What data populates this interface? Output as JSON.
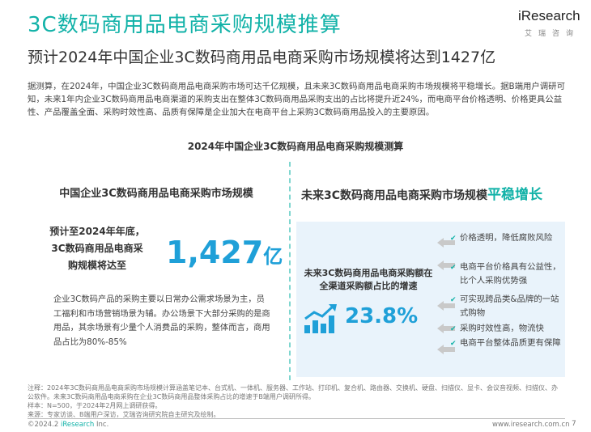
{
  "header": {
    "title": "3C数码商用品电商采购规模推算",
    "subtitle": "预计2024年中国企业3C数码商用品电商采购市场规模将达到1427亿",
    "logo_word": "iResearch",
    "logo_cn": "艾瑞咨询"
  },
  "intro": "据测算，在2024年，中国企业3C数码商用品电商采购市场可达千亿规模，且未来3C数码商用品电商采购市场规模将平稳增长。据B端用户调研可知，未来1年内企业3C数码商用品电商渠道的采购支出在整体3C数码商用品采购支出的占比将提升近24%，而电商平台价格透明、价格更具公益性、产品覆盖全面、采购时效性高、品质有保障是企业加大在电商平台上采购3C数码商用品投入的主要原因。",
  "chart_title": "2024年中国企业3C数码商用品电商采购规模测算",
  "left": {
    "heading": "中国企业3C数码商用品电商采购市场规模",
    "lines": [
      "预计至2024年年底，",
      "3C数码商用品电商采",
      "购规模将达至"
    ],
    "value": "1,427",
    "unit": "亿",
    "note": "企业3C数码产品的采购主要以日常办公需求场景为主，员工福利和市场营销场景为辅。办公场景下大部分采购的是商用品，其余场景有少量个人消费品的采购，整体而言，商用品占比为80%-85%"
  },
  "right": {
    "heading_prefix": "未来3C数码商用品电商采购市场规模",
    "heading_accent": "平稳增长",
    "label_lines": [
      "未来3C数码商用品电商采购额在",
      "全渠道采购额占比的增速"
    ],
    "value": "23.8%",
    "reasons": [
      "价格透明，降低腐败风险",
      "电商平台价格具有公益性，比个人采购优势强",
      "可实现跨品类&品牌的一站式购物",
      "采购时效性高，物流快",
      "电商平台整体品质更有保障"
    ]
  },
  "footnote": "注释：2024年3C数码商用品电商采购市场规模计算涵盖笔记本、台式机、一体机、服务器、工作站、打印机、复合机、路由器、交换机、硬盘、扫描仪、显卡、会议音视频、扫描仪、办公软件。未来3C数码商用品电商采购在企业3C数码商用品整体采购占比的增速于B端用户调研所得。\n样本：N=500，于2024年2月网上调研获得。\n来源：专家访谈、B端用户深访，艾瑞咨询研究院自主研究及绘制。",
  "footer": {
    "copyright_prefix": "©2024.2 ",
    "copyright_brand": "iResearch",
    "copyright_suffix": " Inc.",
    "url": "www.iresearch.com.cn",
    "page": "7"
  },
  "colors": {
    "accent_teal": "#12b2a8",
    "accent_blue": "#1fa0d8",
    "panel_bg": "#e9f3fb"
  }
}
